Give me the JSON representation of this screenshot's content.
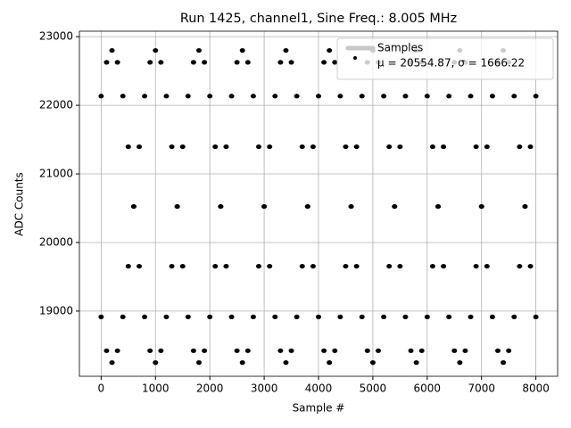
{
  "chart_data": {
    "type": "scatter",
    "title": "Run 1425, channel1, Sine Freq.: 8.005 MHz",
    "xlabel": "Sample #",
    "ylabel": "ADC Counts",
    "xlim": [
      -400,
      8400
    ],
    "ylim": [
      18050,
      23080
    ],
    "xticks": [
      0,
      1000,
      2000,
      3000,
      4000,
      5000,
      6000,
      7000,
      8000
    ],
    "yticks": [
      19000,
      20000,
      21000,
      22000,
      23000
    ],
    "grid": true,
    "legend_loc": "upper right",
    "legend_handle_color": "#c8c8c8",
    "annotation": "μ = 20554.87, σ = 1666.22",
    "x": [
      0,
      100,
      200,
      300,
      400,
      500,
      600,
      700,
      800,
      900,
      1000,
      1100,
      1200,
      1300,
      1400,
      1500,
      1600,
      1700,
      1800,
      1900,
      2000,
      2100,
      2200,
      2300,
      2400,
      2500,
      2600,
      2700,
      2800,
      2900,
      3000,
      3100,
      3200,
      3300,
      3400,
      3500,
      3600,
      3700,
      3800,
      3900,
      4000,
      4100,
      4200,
      4300,
      4400,
      4500,
      4600,
      4700,
      4800,
      4900,
      5000,
      5100,
      5200,
      5300,
      5400,
      5500,
      5600,
      5700,
      5800,
      5900,
      6000,
      6100,
      6200,
      6300,
      6400,
      6500,
      6600,
      6700,
      6800,
      6900,
      7000,
      7100,
      7200,
      7300,
      7400,
      7500,
      7600,
      7700,
      7800,
      7900,
      8000,
      0,
      100,
      200,
      300,
      400,
      500,
      600,
      700,
      800,
      900,
      1000,
      1100,
      1200,
      1300,
      1400,
      1500,
      1600,
      1700,
      1800,
      1900,
      2000,
      2100,
      2200,
      2300,
      2400,
      2500,
      2600,
      2700,
      2800,
      2900,
      3000,
      3100,
      3200,
      3300,
      3400,
      3500,
      3600,
      3700,
      3800,
      3900,
      4000,
      4100,
      4200,
      4300,
      4400,
      4500,
      4600,
      4700,
      4800,
      4900,
      5000,
      5100,
      5200,
      5300,
      5400,
      5500,
      5600,
      5700,
      5800,
      5900,
      6000,
      6100,
      6200,
      6300,
      6400,
      6500,
      6600,
      6700,
      6800,
      6900,
      7000,
      7100,
      7200,
      7300,
      7400,
      7500,
      7600,
      7700,
      7800,
      7900,
      8000
    ],
    "series": [
      {
        "name": "Samples",
        "color": "#000000",
        "values": [
          22134,
          22627,
          22800,
          22627,
          22134,
          21396,
          20525,
          19654,
          18916,
          18423,
          18250,
          18423,
          18916,
          19654,
          20525,
          21396,
          22134,
          22627,
          22800,
          22627,
          22134,
          21396,
          20525,
          19654,
          18916,
          18423,
          18250,
          18423,
          18916,
          19654,
          20525,
          21396,
          22134,
          22627,
          22800,
          22627,
          22134,
          21396,
          20525,
          19654,
          18916,
          18423,
          18250,
          18423,
          18916,
          19654,
          20525,
          21396,
          22134,
          22627,
          22800,
          22627,
          22134,
          21396,
          20525,
          19654,
          18916,
          18423,
          18250,
          18423,
          18916,
          19654,
          20525,
          21396,
          22134,
          22627,
          22800,
          22627,
          22134,
          21396,
          20525,
          19654,
          18916,
          18423,
          18250,
          18423,
          18916,
          19654,
          20525,
          21396,
          22134,
          18916,
          18423,
          18250,
          18423,
          18916,
          19654,
          20525,
          21396,
          22134,
          22627,
          22800,
          22627,
          22134,
          21396,
          20525,
          19654,
          18916,
          18423,
          18250,
          18423,
          18916,
          19654,
          20525,
          21396,
          22134,
          22627,
          22800,
          22627,
          22134,
          21396,
          20525,
          19654,
          18916,
          18423,
          18250,
          18423,
          18916,
          19654,
          20525,
          21396,
          22134,
          22627,
          22800,
          22627,
          22134,
          21396,
          20525,
          19654,
          18916,
          18423,
          18250,
          18423,
          18916,
          19654,
          20525,
          21396,
          22134,
          22627,
          22800,
          22627,
          22134,
          21396,
          20525,
          19654,
          18916,
          18423,
          18250,
          18423,
          18916,
          19654,
          20525,
          21396,
          22134,
          22627,
          22800,
          22627,
          22134,
          21396,
          20525,
          19654,
          18916
        ]
      }
    ]
  }
}
